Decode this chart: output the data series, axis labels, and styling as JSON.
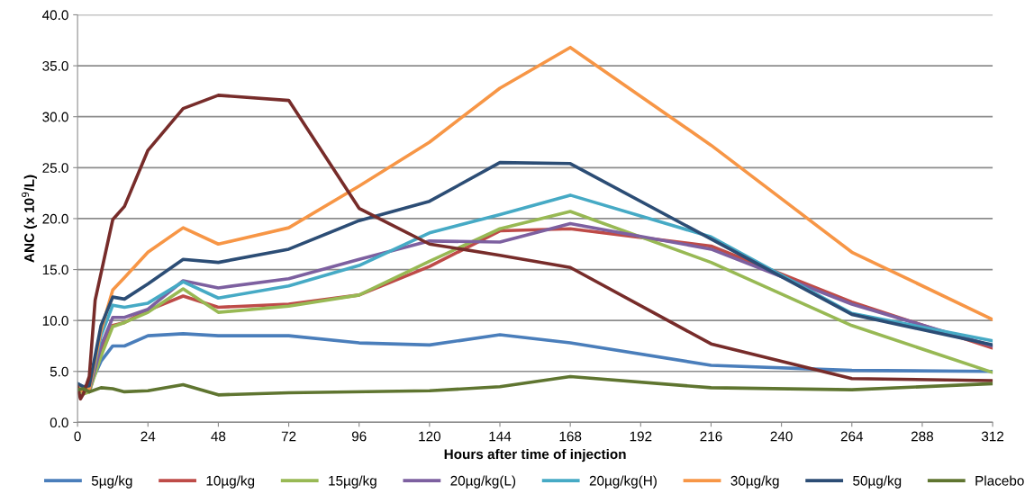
{
  "chart_data": {
    "type": "line",
    "xlabel": "Hours after time of injection",
    "ylabel": "ANC (x 10$^{9}$/L)",
    "x": [
      0,
      2,
      4,
      8,
      12,
      16,
      24,
      36,
      48,
      72,
      96,
      120,
      144,
      168,
      216,
      264,
      312
    ],
    "xlim": [
      0,
      312
    ],
    "xticks": [
      0,
      24,
      48,
      72,
      96,
      120,
      144,
      168,
      192,
      216,
      240,
      264,
      288,
      312
    ],
    "ylim": [
      0,
      40
    ],
    "yticks": [
      {
        "value": 0,
        "label": "0.0"
      },
      {
        "value": 5,
        "label": "5.0"
      },
      {
        "value": 10,
        "label": "10.0"
      },
      {
        "value": 15,
        "label": "15.0"
      },
      {
        "value": 20,
        "label": "20.0"
      },
      {
        "value": 25,
        "label": "25.0"
      },
      {
        "value": 30,
        "label": "30.0"
      },
      {
        "value": 35,
        "label": "35.0"
      },
      {
        "value": 40,
        "label": "40.0"
      }
    ],
    "grid": "y",
    "legend": "bottom",
    "marker": "none",
    "line_style": "solid",
    "series": [
      {
        "name": "5µg/kg",
        "color": "#4a7ebb",
        "values": [
          3.8,
          3.5,
          3.5,
          6.0,
          7.5,
          7.5,
          8.5,
          8.7,
          8.5,
          8.5,
          7.8,
          7.6,
          8.6,
          7.8,
          5.6,
          5.1,
          5.0
        ]
      },
      {
        "name": "10µg/kg",
        "color": "#be4b48",
        "values": [
          3.5,
          3.0,
          3.0,
          7.0,
          9.5,
          9.8,
          11.0,
          12.4,
          11.3,
          11.6,
          12.5,
          15.3,
          18.8,
          19.0,
          17.3,
          11.8,
          7.3
        ]
      },
      {
        "name": "15µg/kg",
        "color": "#98b954",
        "values": [
          3.3,
          2.8,
          3.0,
          6.5,
          9.4,
          9.8,
          10.8,
          13.1,
          10.8,
          11.4,
          12.5,
          15.8,
          19.0,
          20.7,
          15.7,
          9.5,
          4.9
        ]
      },
      {
        "name": "20µg/kg(L)",
        "color": "#7d60a0",
        "values": [
          3.6,
          3.0,
          3.2,
          7.5,
          10.3,
          10.3,
          11.1,
          13.9,
          13.2,
          14.1,
          16.0,
          17.8,
          17.7,
          19.5,
          17.0,
          11.6,
          7.5
        ]
      },
      {
        "name": "20µg/kg(H)",
        "color": "#46aac5",
        "values": [
          3.8,
          3.2,
          3.4,
          8.5,
          11.5,
          11.3,
          11.7,
          13.8,
          12.2,
          13.4,
          15.4,
          18.6,
          20.4,
          22.3,
          18.2,
          10.7,
          8.0
        ]
      },
      {
        "name": "30µg/kg",
        "color": "#f79646",
        "values": [
          3.5,
          3.0,
          3.3,
          9.0,
          13.0,
          14.2,
          16.7,
          19.1,
          17.5,
          19.1,
          23.2,
          27.5,
          32.8,
          36.8,
          27.2,
          16.7,
          10.1
        ]
      },
      {
        "name": "50µg/kg",
        "color": "#2c4d75",
        "values": [
          3.8,
          3.5,
          3.6,
          9.5,
          12.3,
          12.1,
          13.6,
          16.0,
          15.7,
          17.0,
          19.8,
          21.7,
          25.5,
          25.4,
          18.0,
          10.6,
          7.6
        ]
      },
      {
        "color": "#772c2a",
        "x": [
          0,
          1,
          2,
          4,
          6,
          12,
          16,
          24,
          36,
          48,
          72,
          96,
          120,
          144,
          168,
          216,
          264,
          312
        ],
        "values": [
          3.5,
          2.3,
          2.8,
          4.5,
          12.0,
          19.9,
          21.2,
          26.7,
          30.8,
          32.1,
          31.6,
          21.0,
          17.5,
          16.4,
          15.2,
          7.7,
          4.3,
          4.1
        ]
      },
      {
        "name": "Placebo",
        "color": "#5f7530",
        "x": [
          0,
          2,
          4,
          8,
          12,
          16,
          24,
          36,
          48,
          72,
          120,
          144,
          168,
          216,
          264,
          312
        ],
        "values": [
          3.2,
          3.3,
          3.0,
          3.4,
          3.3,
          3.0,
          3.1,
          3.7,
          2.7,
          2.9,
          3.1,
          3.5,
          4.5,
          3.4,
          3.2,
          3.8
        ]
      }
    ]
  }
}
